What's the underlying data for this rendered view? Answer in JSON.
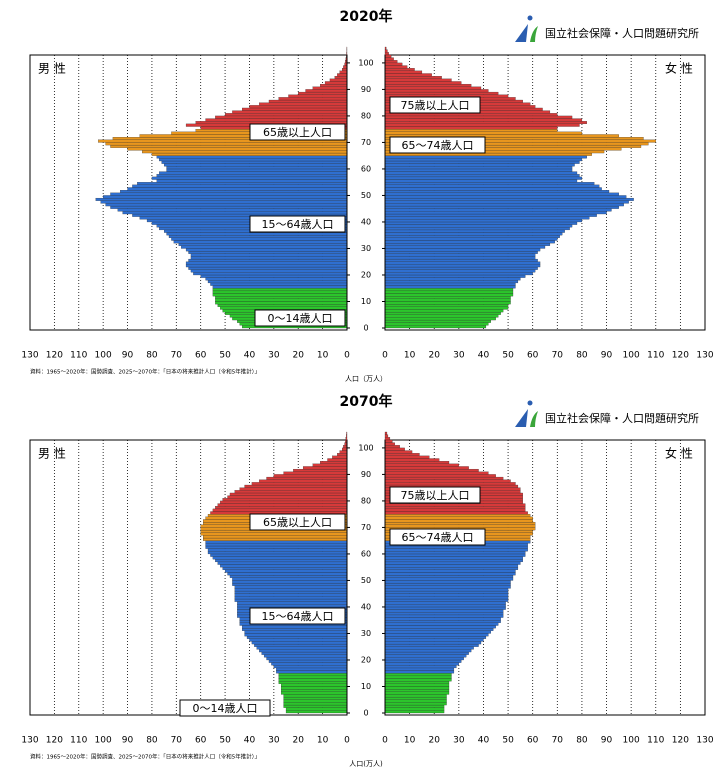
{
  "chart_data": [
    {
      "type": "population_pyramid",
      "title": "2020年",
      "org": "国立社会保障・人口問題研究所",
      "male_label": "男 性",
      "female_label": "女 性",
      "xlabel": "人口（万人）",
      "source": "資料：1965～2020年：国勢調査、2025～2070年：「日本の将来推計人口（令和5年推計）」",
      "annotations": [
        "65歳以上人口",
        "75歳以上人口",
        "65〜74歳人口",
        "15〜64歳人口",
        "0〜14歳人口"
      ],
      "xlim": [
        0,
        130
      ],
      "xticks": [
        0,
        10,
        20,
        30,
        40,
        50,
        60,
        70,
        80,
        90,
        100,
        110,
        120,
        130
      ],
      "ylim": [
        0,
        106
      ],
      "yticks": [
        0,
        10,
        20,
        30,
        40,
        50,
        60,
        70,
        80,
        90,
        100
      ],
      "male": [
        {
          "color": "#2cc52c",
          "values": [
            43,
            44,
            45,
            47,
            48,
            50,
            51,
            52,
            53,
            54,
            54,
            54,
            55,
            55,
            55
          ]
        },
        {
          "color": "#2f6fd0",
          "values": [
            55,
            56,
            57,
            58,
            60,
            63,
            64,
            65,
            66,
            66,
            65,
            64,
            64,
            65,
            66,
            68,
            69,
            71,
            72,
            73,
            74,
            75,
            77,
            78,
            80,
            82,
            85,
            88,
            92,
            94,
            97,
            99,
            101,
            103,
            100,
            97,
            93,
            90,
            88,
            86,
            78,
            80,
            78,
            77,
            74,
            74,
            75,
            76,
            77,
            78
          ]
        },
        {
          "color": "#e8961e",
          "values": [
            80,
            84,
            90,
            97,
            99,
            102,
            96,
            85,
            72,
            62
          ]
        },
        {
          "color": "#d63a3a",
          "values": [
            60,
            66,
            62,
            58,
            54,
            50,
            47,
            43,
            40,
            36,
            32,
            28,
            24,
            20,
            17,
            14,
            11,
            9,
            7,
            5,
            4,
            3,
            2,
            1.5,
            1,
            0.7,
            0.5,
            0.3,
            0.2,
            0.1,
            0.1
          ]
        }
      ],
      "female": [
        {
          "color": "#2cc52c",
          "values": [
            41,
            42,
            43,
            45,
            46,
            47,
            48,
            50,
            50,
            51,
            51,
            51,
            52,
            52,
            52
          ]
        },
        {
          "color": "#2f6fd0",
          "values": [
            53,
            53,
            54,
            55,
            57,
            60,
            61,
            62,
            63,
            63,
            62,
            61,
            61,
            62,
            63,
            65,
            67,
            69,
            70,
            71,
            72,
            73,
            75,
            76,
            78,
            80,
            83,
            86,
            90,
            92,
            95,
            97,
            99,
            101,
            98,
            95,
            91,
            88,
            87,
            85,
            78,
            80,
            79,
            78,
            76,
            76,
            77,
            79,
            80,
            82
          ]
        },
        {
          "color": "#e8961e",
          "values": [
            84,
            89,
            96,
            104,
            107,
            110,
            105,
            95,
            80,
            70
          ]
        },
        {
          "color": "#d63a3a",
          "values": [
            70,
            79,
            82,
            80,
            76,
            70,
            67,
            64,
            61,
            59,
            56,
            53,
            50,
            46,
            42,
            39,
            35,
            31,
            27,
            23,
            19,
            15,
            12,
            9,
            7,
            5,
            3.5,
            2.5,
            1.5,
            1,
            0.5
          ]
        }
      ]
    },
    {
      "type": "population_pyramid",
      "title": "2070年",
      "org": "国立社会保障・人口問題研究所",
      "male_label": "男 性",
      "female_label": "女 性",
      "xlabel": "人口(万人)",
      "source": "資料：1965～2020年：国勢調査、2025～2070年：「日本の将来推計人口（令和5年推計）」",
      "annotations": [
        "65歳以上人口",
        "75歳以上人口",
        "65〜74歳人口",
        "15〜64歳人口",
        "0〜14歳人口"
      ],
      "xlim": [
        0,
        130
      ],
      "xticks": [
        0,
        10,
        20,
        30,
        40,
        50,
        60,
        70,
        80,
        90,
        100,
        110,
        120,
        130
      ],
      "ylim": [
        0,
        106
      ],
      "yticks": [
        0,
        10,
        20,
        30,
        40,
        50,
        60,
        70,
        80,
        90,
        100
      ],
      "male": [
        {
          "color": "#2cc52c",
          "values": [
            25,
            25,
            26,
            26,
            26,
            26,
            26,
            27,
            27,
            27,
            27,
            28,
            28,
            28,
            28
          ]
        },
        {
          "color": "#2f6fd0",
          "values": [
            29,
            29,
            30,
            31,
            32,
            33,
            34,
            35,
            36,
            37,
            38,
            39,
            40,
            41,
            42,
            42,
            43,
            43,
            44,
            44,
            44,
            45,
            45,
            45,
            45,
            45,
            45,
            46,
            46,
            46,
            46,
            46,
            46,
            47,
            47,
            47,
            48,
            49,
            50,
            51,
            52,
            53,
            54,
            55,
            56,
            57,
            57,
            58,
            58,
            58
          ]
        },
        {
          "color": "#e8961e",
          "values": [
            59,
            59,
            60,
            60,
            60,
            60,
            59,
            59,
            58,
            57
          ]
        },
        {
          "color": "#d63a3a",
          "values": [
            56,
            55,
            54,
            53,
            52,
            51,
            49,
            48,
            46,
            44,
            42,
            39,
            36,
            33,
            30,
            26,
            22,
            18,
            14,
            11,
            8,
            6,
            4,
            3,
            2,
            1.5,
            1,
            0.7,
            0.5,
            0.3,
            0.2
          ]
        }
      ],
      "female": [
        {
          "color": "#2cc52c",
          "values": [
            24,
            24,
            24,
            25,
            25,
            25,
            25,
            26,
            26,
            26,
            26,
            26,
            27,
            27,
            27
          ]
        },
        {
          "color": "#2f6fd0",
          "values": [
            28,
            28,
            29,
            30,
            31,
            32,
            33,
            34,
            35,
            36,
            38,
            39,
            40,
            41,
            42,
            43,
            44,
            45,
            46,
            47,
            47,
            48,
            48,
            48,
            49,
            49,
            49,
            50,
            50,
            50,
            50,
            50,
            51,
            51,
            51,
            52,
            52,
            53,
            53,
            54,
            54,
            55,
            56,
            56,
            57,
            57,
            58,
            58,
            58,
            59
          ]
        },
        {
          "color": "#e8961e",
          "values": [
            59,
            59,
            60,
            60,
            61,
            61,
            61,
            60,
            60,
            59
          ]
        },
        {
          "color": "#d63a3a",
          "values": [
            58,
            57,
            57,
            57,
            56,
            56,
            56,
            56,
            55,
            55,
            54,
            53,
            51,
            48,
            45,
            42,
            38,
            34,
            30,
            26,
            22,
            18,
            14,
            11,
            8,
            6,
            4,
            3,
            2,
            1.2,
            0.8
          ]
        }
      ]
    }
  ]
}
